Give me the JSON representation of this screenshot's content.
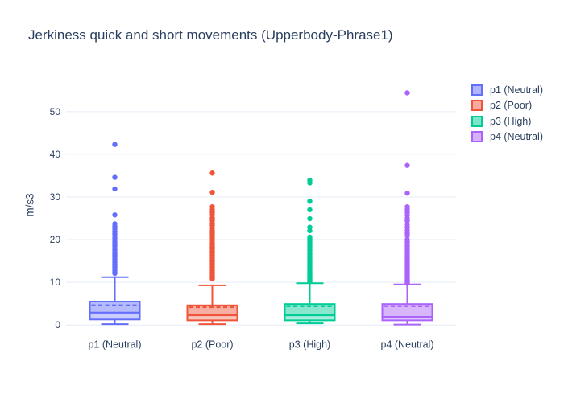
{
  "chart_data": {
    "type": "box",
    "title": "Jerkiness quick and short movements (Upperbody-Phrase1)",
    "ylabel": "m/s3",
    "xlabel": "",
    "categories": [
      "p1 (Neutral)",
      "p2 (Poor)",
      "p3 (High)",
      "p4 (Neutral)"
    ],
    "yticks": [
      0,
      10,
      20,
      30,
      40,
      50
    ],
    "ylim": [
      -2.6,
      59.2
    ],
    "grid": true,
    "legend_position": "right",
    "show_mean_dashed_line": true,
    "text_color": "#2a3f5f",
    "grid_color": "#E5ECF6",
    "background_color": "#ffffff",
    "series": [
      {
        "name": "p1 (Neutral)",
        "color": "#636EFA",
        "whisker_low": 0.2,
        "q1": 1.3,
        "median": 2.9,
        "mean": 4.6,
        "q3": 5.5,
        "whisker_high": 11.2,
        "outliers": [
          42.3,
          34.6,
          31.9,
          25.8,
          23.7,
          23.1,
          22.5,
          21.9,
          21.4,
          20.9,
          20.4,
          19.9,
          19.4,
          18.9,
          18.5,
          18.0,
          17.6,
          17.1,
          16.7,
          16.3,
          15.9,
          15.5,
          15.1,
          14.7,
          14.3,
          13.9,
          13.5,
          13.1,
          12.7,
          12.4,
          12.1
        ]
      },
      {
        "name": "p2 (Poor)",
        "color": "#EF553B",
        "whisker_low": 0.2,
        "q1": 1.1,
        "median": 2.3,
        "mean": 4.2,
        "q3": 4.6,
        "whisker_high": 9.3,
        "outliers": [
          35.6,
          31.1,
          27.7,
          27.1,
          26.4,
          25.8,
          25.1,
          24.5,
          23.9,
          23.3,
          22.7,
          22.1,
          21.5,
          21.0,
          20.4,
          19.9,
          19.3,
          18.8,
          18.3,
          17.8,
          17.3,
          16.8,
          16.3,
          15.8,
          15.3,
          14.9,
          14.4,
          14.0,
          13.5,
          13.1,
          12.7,
          12.3,
          11.9,
          11.5,
          11.1,
          10.8
        ]
      },
      {
        "name": "p3 (High)",
        "color": "#00CC96",
        "whisker_low": 0.4,
        "q1": 1.1,
        "median": 2.3,
        "mean": 4.4,
        "q3": 4.9,
        "whisker_high": 9.8,
        "outliers": [
          33.9,
          33.3,
          29.0,
          27.0,
          24.9,
          22.9,
          22.1,
          20.6,
          20.1,
          19.6,
          19.1,
          18.6,
          18.1,
          17.6,
          17.1,
          16.6,
          16.2,
          15.7,
          15.3,
          14.8,
          14.4,
          14.0,
          13.6,
          13.2,
          12.8,
          12.4,
          12.0,
          11.6,
          11.2,
          10.9,
          10.5,
          10.2
        ]
      },
      {
        "name": "p4 (Neutral)",
        "color": "#AB63FA",
        "whisker_low": 0.1,
        "q1": 1.1,
        "median": 1.9,
        "mean": 4.4,
        "q3": 4.9,
        "whisker_high": 9.5,
        "outliers": [
          54.4,
          37.4,
          30.9,
          27.7,
          27.1,
          26.4,
          25.7,
          25.0,
          24.4,
          23.6,
          22.9,
          22.2,
          21.5,
          20.9,
          20.0,
          19.5,
          19.0,
          18.5,
          18.0,
          17.5,
          17.0,
          16.5,
          16.0,
          15.5,
          15.1,
          14.6,
          14.2,
          13.7,
          13.3,
          12.9,
          12.5,
          12.1,
          11.7,
          11.3,
          10.9,
          10.5,
          10.1,
          9.8
        ]
      }
    ]
  }
}
